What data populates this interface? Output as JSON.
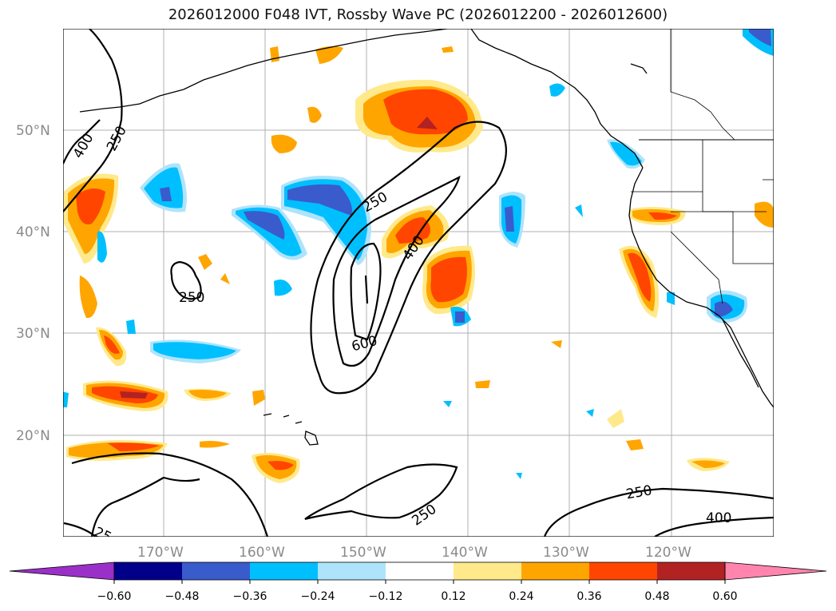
{
  "title": "2026012000 F048 IVT, Rossby Wave PC (2026012200 - 2026012600)",
  "map": {
    "lat_labels": [
      "50°N",
      "40°N",
      "30°N",
      "20°N"
    ],
    "lon_labels": [
      "170°W",
      "160°W",
      "150°W",
      "140°W",
      "130°W",
      "120°W"
    ],
    "contour_labels": [
      "400",
      "250",
      "250",
      "250",
      "400",
      "600",
      "250",
      "250",
      "400",
      "25"
    ]
  },
  "colorbar": {
    "ticks": [
      "−0.60",
      "−0.48",
      "−0.36",
      "−0.24",
      "−0.12",
      "0.12",
      "0.24",
      "0.36",
      "0.48",
      "0.60"
    ],
    "colors": [
      "#9a30c8",
      "#00008b",
      "#3a5bcc",
      "#00bfff",
      "#aee4fb",
      "#ffffff",
      "#ffe98a",
      "#ffa500",
      "#ff4500",
      "#b22222",
      "#ff85ae"
    ]
  },
  "colors": {
    "ocean": "#ffffff",
    "grid": "#b0b0b0",
    "contour": "#000000"
  }
}
